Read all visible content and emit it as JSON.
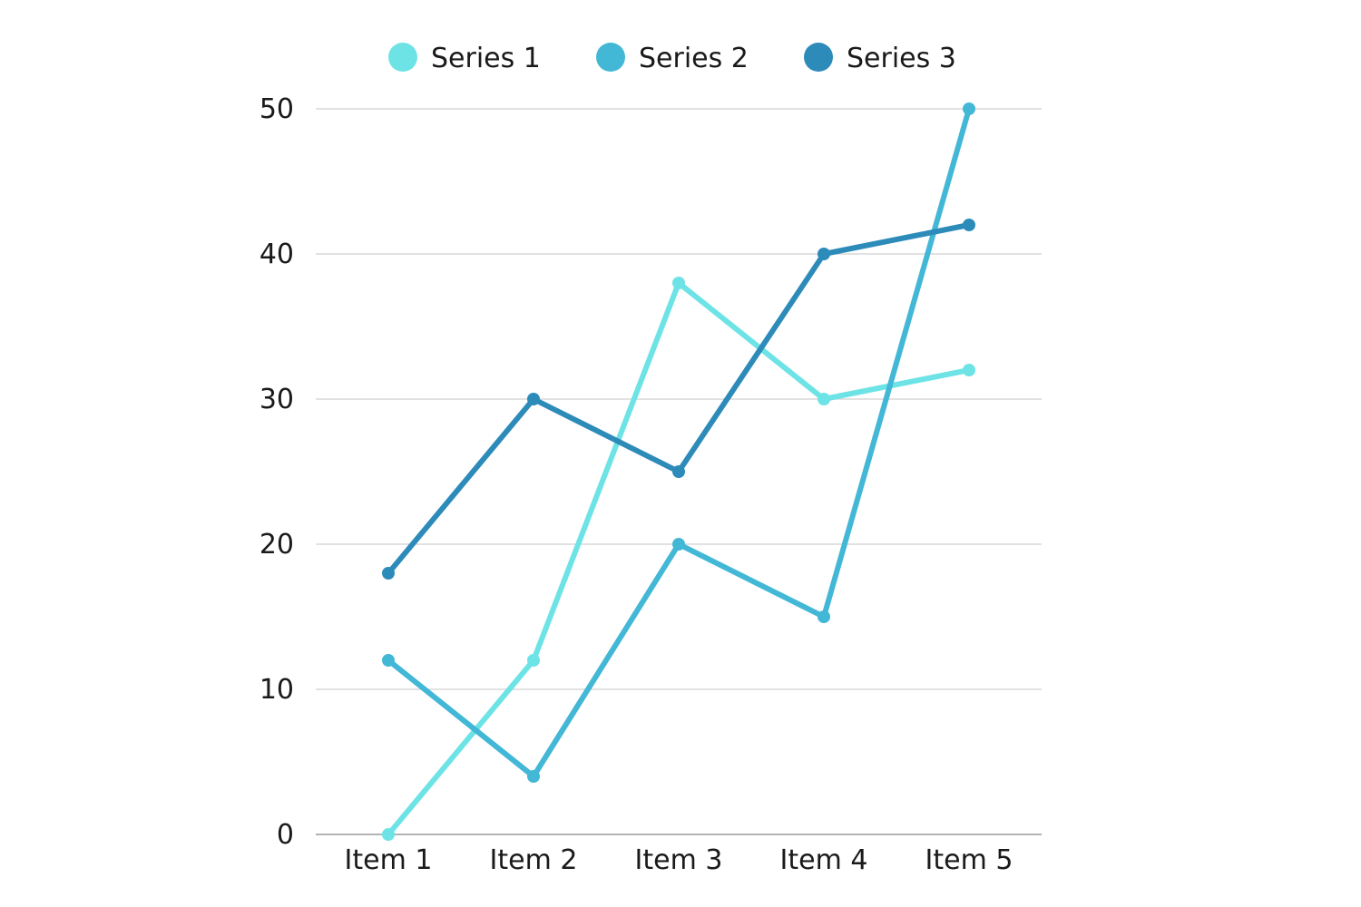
{
  "chart_data": {
    "type": "line",
    "title": "",
    "xlabel": "",
    "ylabel": "",
    "categories": [
      "Item 1",
      "Item 2",
      "Item 3",
      "Item 4",
      "Item 5"
    ],
    "yticks": [
      "0",
      "10",
      "20",
      "30",
      "40",
      "50"
    ],
    "ylim": [
      0,
      50
    ],
    "grid": true,
    "legend_position": "top",
    "series": [
      {
        "name": "Series 1",
        "color": "#6de3e6",
        "values": [
          0,
          12,
          38,
          30,
          32
        ]
      },
      {
        "name": "Series 2",
        "color": "#43b7d6",
        "values": [
          12,
          4,
          20,
          15,
          50
        ]
      },
      {
        "name": "Series 3",
        "color": "#2d8bba",
        "values": [
          18,
          30,
          25,
          40,
          42
        ]
      }
    ]
  }
}
